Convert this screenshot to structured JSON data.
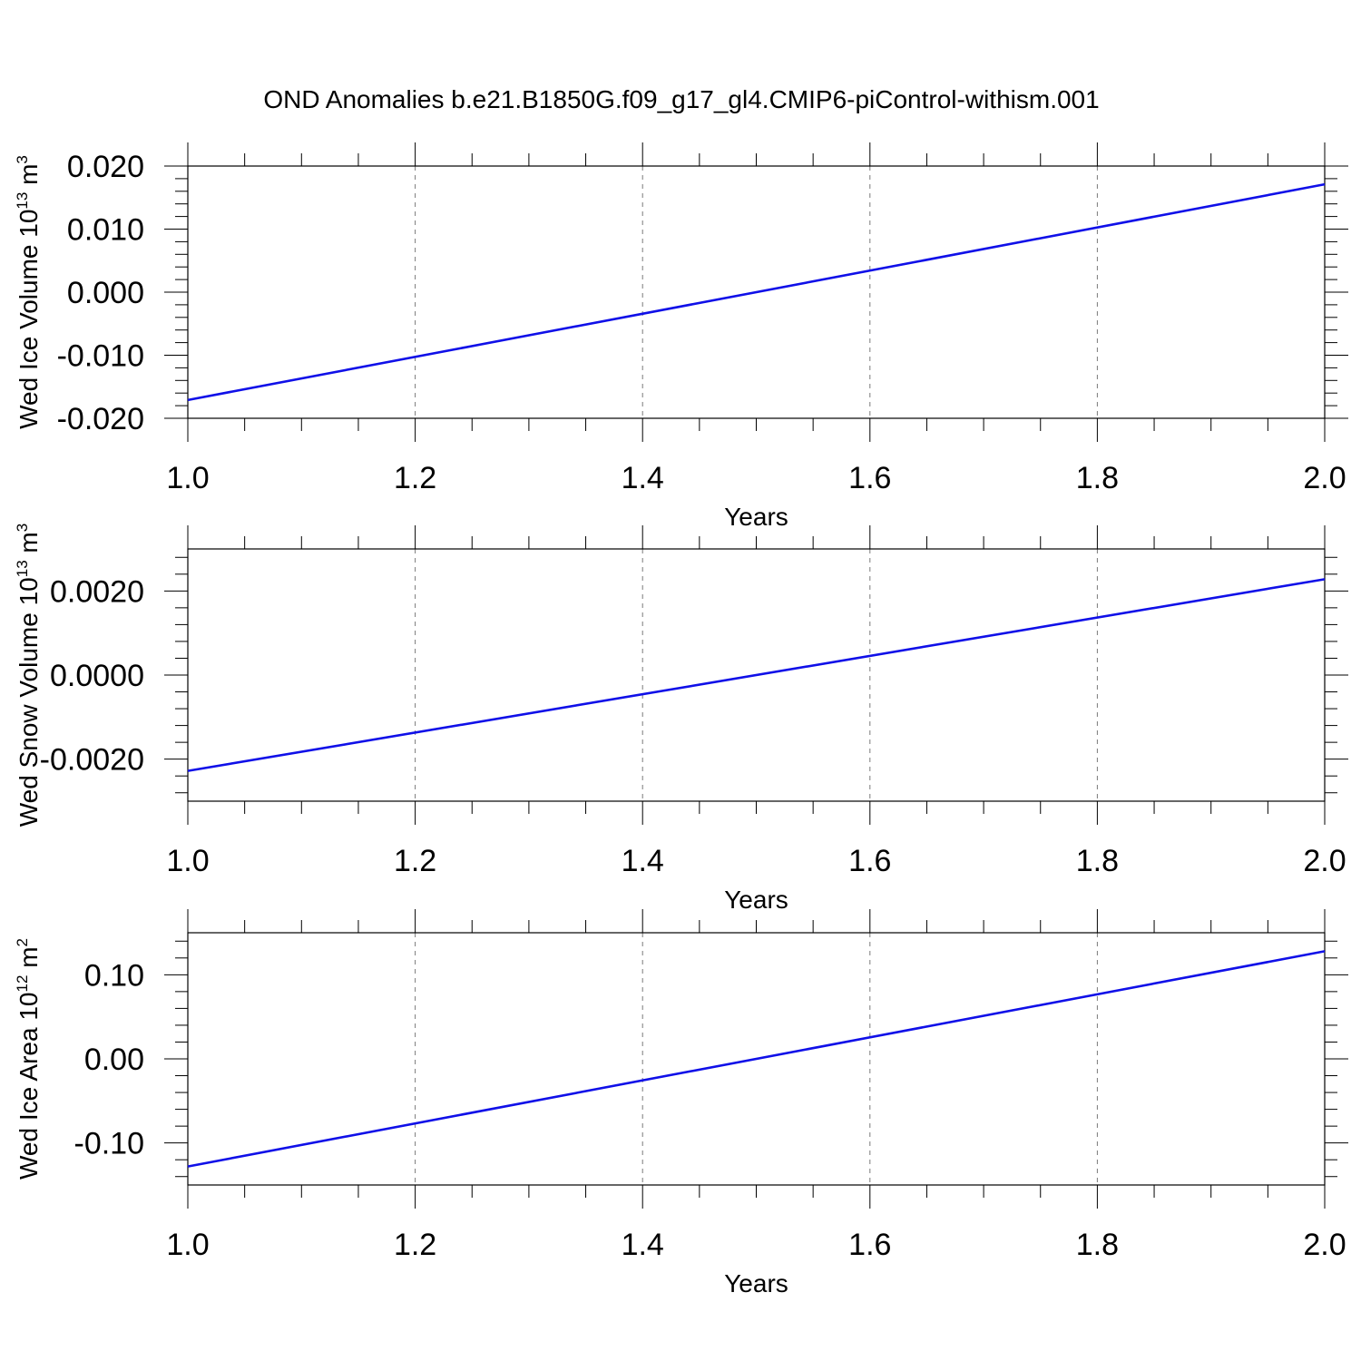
{
  "title": "OND Anomalies b.e21.B1850G.f09_g17_gl4.CMIP6-piControl-withism.001",
  "colors": {
    "line": "#1010e8",
    "frame": "#000000",
    "grid": "#7a7a7a"
  },
  "chart_data": [
    {
      "type": "line",
      "ylabel": {
        "text": "Wed Ice Volume 10",
        "sup": "13",
        "unit": " m",
        "unit_sup": "3"
      },
      "xlabel": "Years",
      "xlim": [
        1.0,
        2.0
      ],
      "ylim": [
        -0.02,
        0.02
      ],
      "grid": "vertical dashed",
      "xticks": [
        "1.0",
        "1.2",
        "1.4",
        "1.6",
        "1.8",
        "2.0"
      ],
      "yticks": [
        {
          "value": 0.02,
          "label": "0.020"
        },
        {
          "value": 0.01,
          "label": "0.010"
        },
        {
          "value": 0.0,
          "label": "0.000"
        },
        {
          "value": -0.01,
          "label": "-0.010"
        },
        {
          "value": -0.02,
          "label": "-0.020"
        }
      ],
      "series": [
        {
          "x": [
            1.0,
            2.0
          ],
          "y": [
            -0.0171,
            0.0171
          ]
        }
      ]
    },
    {
      "type": "line",
      "ylabel": {
        "text": "Wed Snow Volume 10",
        "sup": "13",
        "unit": " m",
        "unit_sup": "3"
      },
      "xlabel": "Years",
      "xlim": [
        1.0,
        2.0
      ],
      "ylim": [
        -0.003,
        0.003
      ],
      "grid": "vertical dashed",
      "xticks": [
        "1.0",
        "1.2",
        "1.4",
        "1.6",
        "1.8",
        "2.0"
      ],
      "yticks": [
        {
          "value": 0.002,
          "label": "0.0020"
        },
        {
          "value": 0.0,
          "label": "0.0000"
        },
        {
          "value": -0.002,
          "label": "-0.0020"
        }
      ],
      "series": [
        {
          "x": [
            1.0,
            2.0
          ],
          "y": [
            -0.00228,
            0.00228
          ]
        }
      ]
    },
    {
      "type": "line",
      "ylabel": {
        "text": "Wed Ice Area 10",
        "sup": "12",
        "unit": " m",
        "unit_sup": "2"
      },
      "xlabel": "Years",
      "xlim": [
        1.0,
        2.0
      ],
      "ylim": [
        -0.15,
        0.15
      ],
      "grid": "vertical dashed",
      "xticks": [
        "1.0",
        "1.2",
        "1.4",
        "1.6",
        "1.8",
        "2.0"
      ],
      "yticks": [
        {
          "value": 0.1,
          "label": "0.10"
        },
        {
          "value": 0.0,
          "label": "0.00"
        },
        {
          "value": -0.1,
          "label": "-0.10"
        }
      ],
      "series": [
        {
          "x": [
            1.0,
            2.0
          ],
          "y": [
            -0.128,
            0.128
          ]
        }
      ]
    }
  ]
}
